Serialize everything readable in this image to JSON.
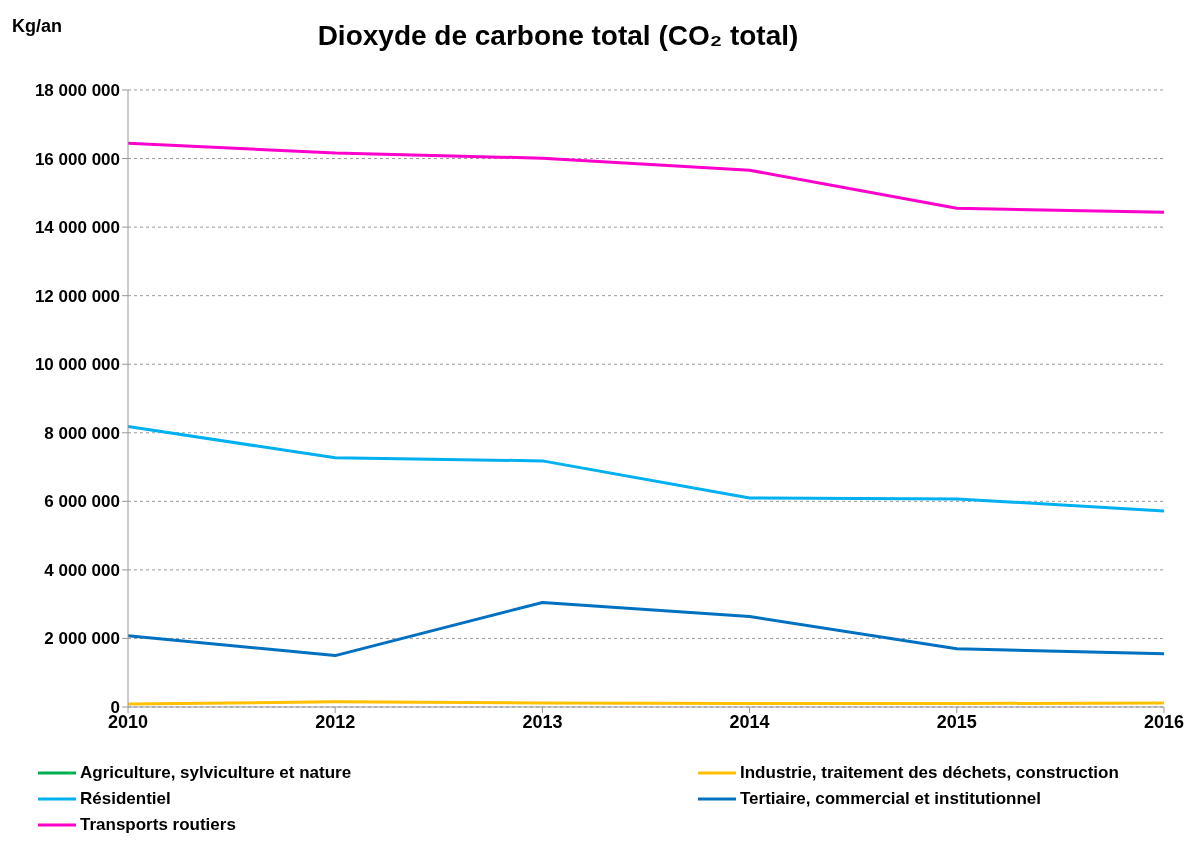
{
  "chart_data": {
    "type": "line",
    "title": "Dioxyde de carbone total (CO₂ total)",
    "ylabel": "Kg/an",
    "categories": [
      "2010",
      "2012",
      "2013",
      "2014",
      "2015",
      "2016"
    ],
    "series": [
      {
        "name": "Agriculture, sylviculture et nature",
        "color": "#00b050",
        "values": [
          null,
          null,
          null,
          null,
          null,
          null
        ]
      },
      {
        "name": "Industrie, traitement des déchets, construction",
        "color": "#ffc000",
        "values": [
          90000,
          150000,
          120000,
          100000,
          100000,
          120000
        ]
      },
      {
        "name": "Résidentiel",
        "color": "#00b0f0",
        "values": [
          8180000,
          7270000,
          7180000,
          6100000,
          6070000,
          5720000
        ]
      },
      {
        "name": "Tertiaire, commercial et institutionnel",
        "color": "#0070c0",
        "values": [
          2080000,
          1500000,
          3050000,
          2640000,
          1700000,
          1550000
        ]
      },
      {
        "name": "Transports routiers",
        "color": "#ff00cc",
        "values": [
          16450000,
          16160000,
          16010000,
          15660000,
          14550000,
          14430000
        ]
      }
    ],
    "ylim": [
      0,
      18000000
    ],
    "yticks": [
      {
        "value": 0,
        "label": "0"
      },
      {
        "value": 2000000,
        "label": "2 000 000"
      },
      {
        "value": 4000000,
        "label": "4 000 000"
      },
      {
        "value": 6000000,
        "label": "6 000 000"
      },
      {
        "value": 8000000,
        "label": "8 000 000"
      },
      {
        "value": 10000000,
        "label": "10 000 000"
      },
      {
        "value": 12000000,
        "label": "12 000 000"
      },
      {
        "value": 14000000,
        "label": "14 000 000"
      },
      {
        "value": 16000000,
        "label": "16 000 000"
      },
      {
        "value": 18000000,
        "label": "18 000 000"
      }
    ],
    "grid": "y",
    "legend": "bottom",
    "marker": "none",
    "line_style": "solid"
  }
}
